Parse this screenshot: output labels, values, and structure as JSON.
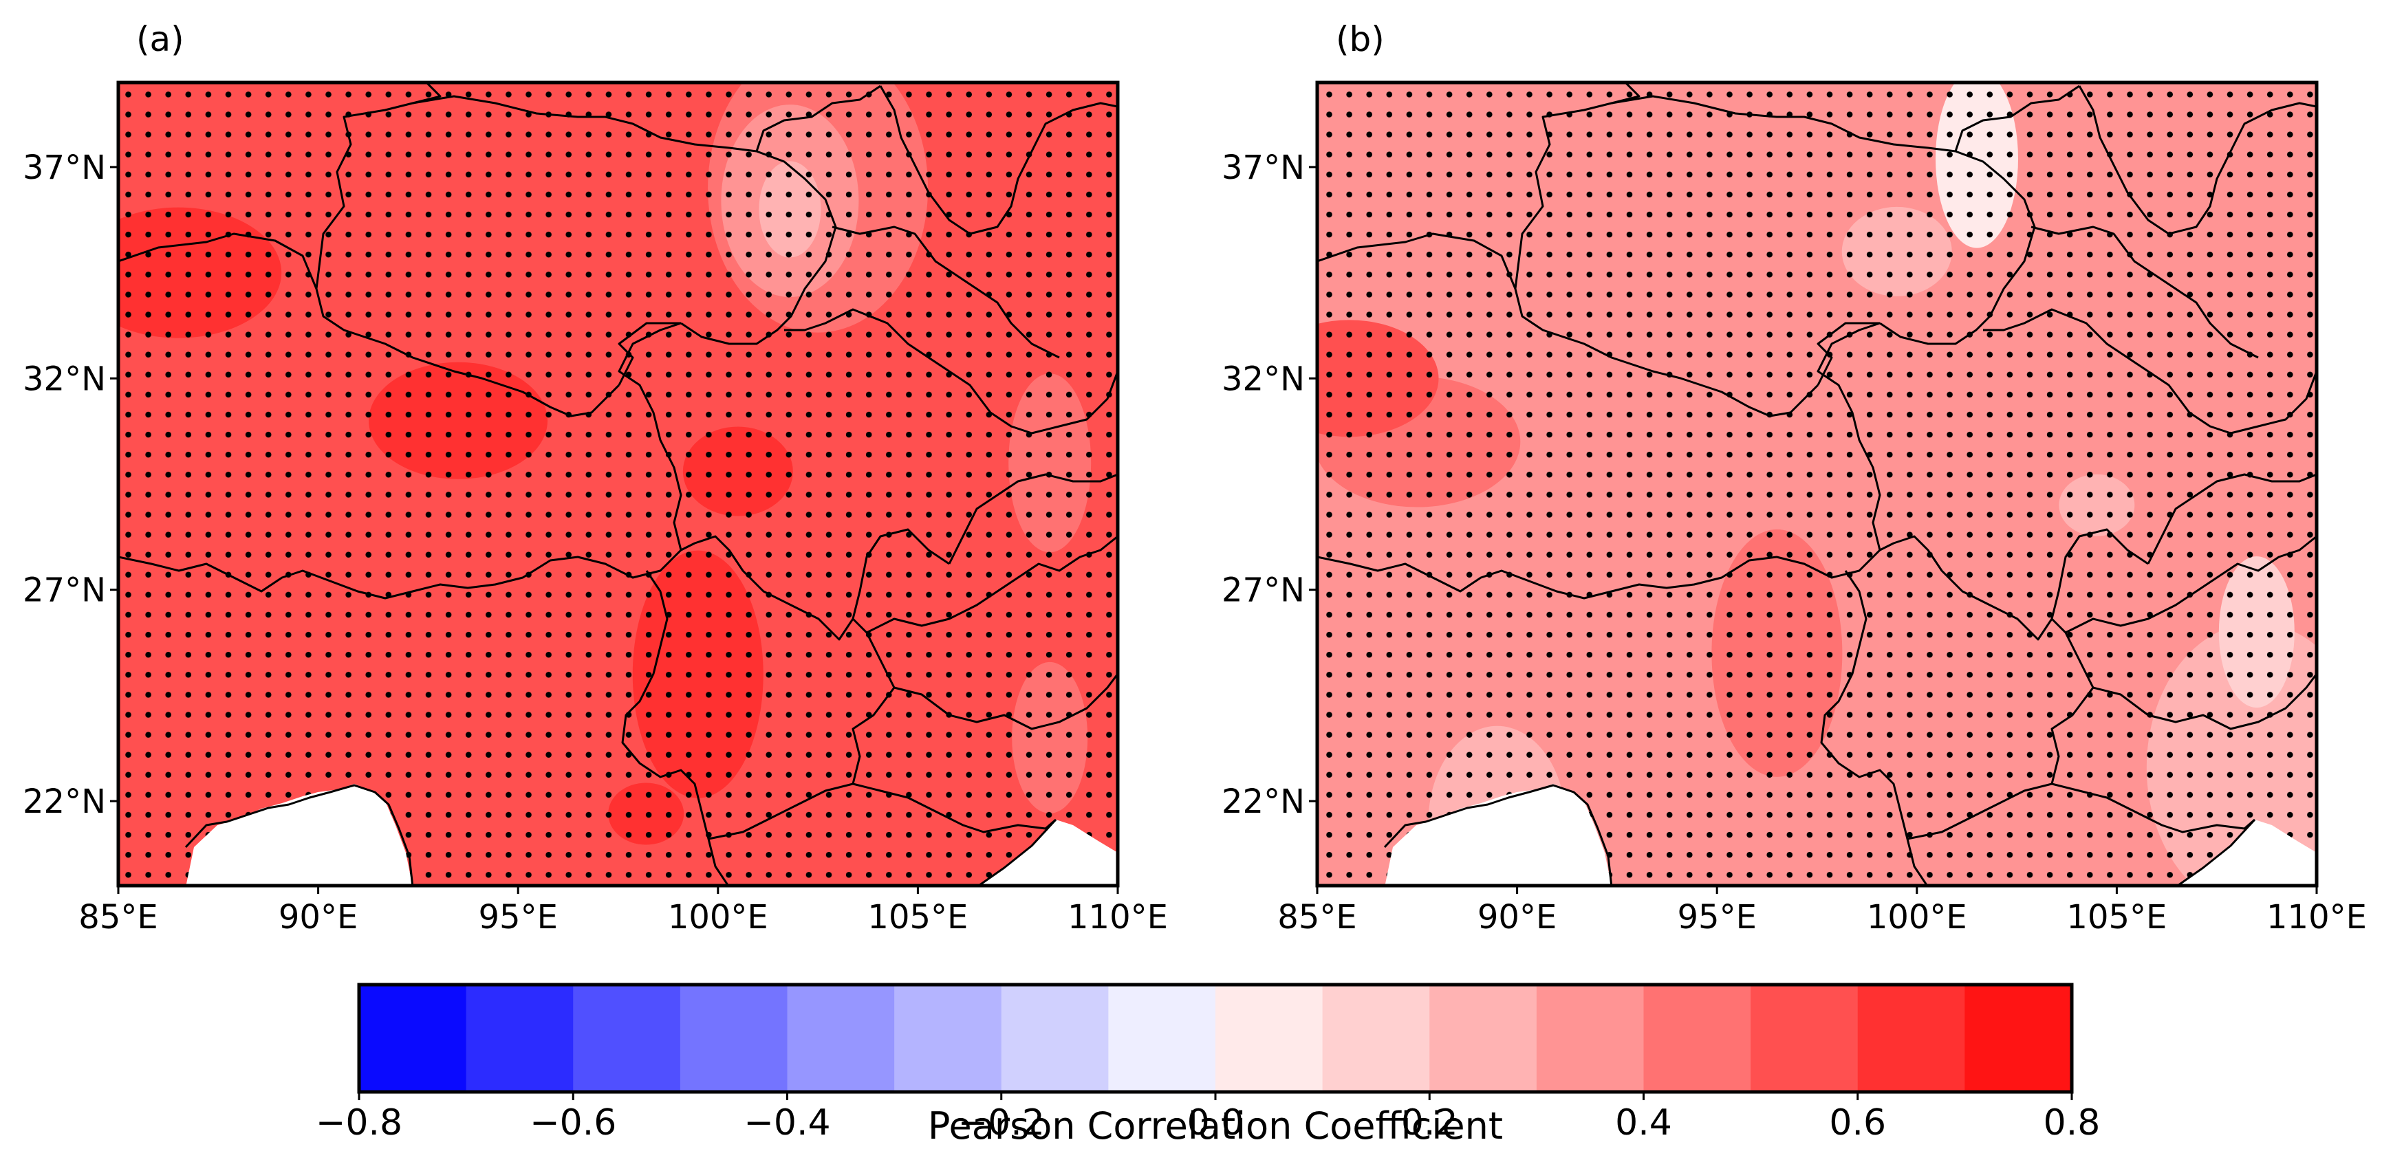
{
  "panels": [
    {
      "label": "(a)",
      "fill_level": "0.5-0.6",
      "patches": [
        {
          "level": "0.6-0.7",
          "lon": 86.5,
          "lat": 34.5
        },
        {
          "level": "0.6-0.7",
          "lon": 93.5,
          "lat": 31.0
        },
        {
          "level": "0.6-0.7",
          "lon": 99.5,
          "lat": 25.0
        },
        {
          "level": "0.6-0.7",
          "lon": 100.5,
          "lat": 29.8
        },
        {
          "level": "0.6-0.7",
          "lon": 98.2,
          "lat": 21.7
        },
        {
          "level": "0.4-0.5",
          "lon": 102.5,
          "lat": 36.5
        },
        {
          "level": "0.3-0.4",
          "lon": 101.8,
          "lat": 36.2
        },
        {
          "level": "0.2-0.3",
          "lon": 101.8,
          "lat": 36.0
        },
        {
          "level": "0.4-0.5",
          "lon": 108.3,
          "lat": 30.0
        },
        {
          "level": "0.4-0.5",
          "lon": 108.3,
          "lat": 23.5
        }
      ]
    },
    {
      "label": "(b)",
      "fill_level": "0.3-0.4",
      "patches": [
        {
          "level": "0.4-0.5",
          "lon": 87.5,
          "lat": 30.5
        },
        {
          "level": "0.5-0.6",
          "lon": 85.8,
          "lat": 32.0
        },
        {
          "level": "0.4-0.5",
          "lon": 96.5,
          "lat": 25.5
        },
        {
          "level": "0.2-0.3",
          "lon": 99.5,
          "lat": 35.0
        },
        {
          "level": "0.2-0.3",
          "lon": 104.5,
          "lat": 29.0
        },
        {
          "level": "0.2-0.3",
          "lon": 108.5,
          "lat": 22.8
        },
        {
          "level": "0.2-0.3",
          "lon": 89.5,
          "lat": 21.5
        },
        {
          "level": "0.1-0.2",
          "lon": 101.5,
          "lat": 37.0
        },
        {
          "level": "0.0-0.1",
          "lon": 101.5,
          "lat": 37.2
        },
        {
          "level": "0.1-0.2",
          "lon": 108.5,
          "lat": 26.0
        }
      ]
    }
  ],
  "lon_ticks": [
    "85°E",
    "90°E",
    "95°E",
    "100°E",
    "105°E",
    "110°E"
  ],
  "lat_ticks": [
    "37°N",
    "32°N",
    "27°N",
    "22°N"
  ],
  "lon_range": [
    85,
    110
  ],
  "lat_range": [
    20,
    39
  ],
  "significance": "stippling",
  "colorbar": {
    "label": "Pearson Correlation Coefficient",
    "min": -0.8,
    "max": 0.8,
    "step": 0.1,
    "tick_labels": [
      "−0.8",
      "−0.6",
      "−0.4",
      "−0.2",
      "0.0",
      "0.2",
      "0.4",
      "0.6",
      "0.8"
    ],
    "colors": [
      "#0a0aff",
      "#2c2cff",
      "#5050ff",
      "#7474ff",
      "#9696ff",
      "#b4b4ff",
      "#d0d0fe",
      "#eeeeff",
      "#ffeaea",
      "#ffd0d0",
      "#ffb3b3",
      "#ff9494",
      "#ff7272",
      "#ff5050",
      "#ff3131",
      "#ff1414"
    ],
    "colormap": "bwr"
  }
}
